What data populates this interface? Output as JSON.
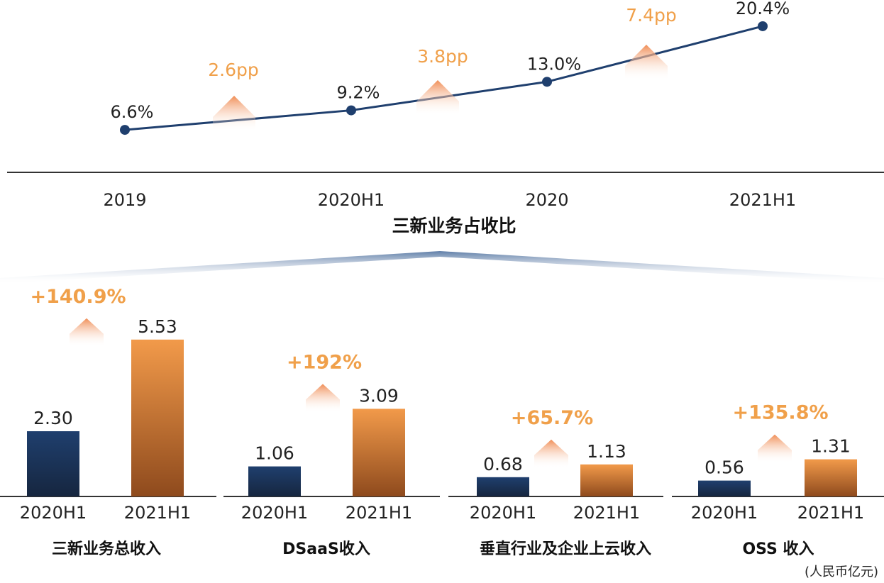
{
  "colors": {
    "navy": "#1f3f6e",
    "orange": "#e98a3c",
    "orange_text": "#f0a04a",
    "arrow": "#f0925a",
    "axis": "#333333",
    "text": "#222222"
  },
  "chart_data": [
    {
      "type": "line",
      "title": "三新业务占收比",
      "categories": [
        "2019",
        "2020H1",
        "2020",
        "2021H1"
      ],
      "values": [
        6.6,
        9.2,
        13.0,
        20.4
      ],
      "value_labels": [
        "6.6%",
        "9.2%",
        "13.0%",
        "20.4%"
      ],
      "ylim": [
        0,
        22
      ],
      "increments": [
        "2.6pp",
        "3.8pp",
        "7.4pp"
      ]
    },
    {
      "type": "bar",
      "title": "三新业务总收入",
      "categories": [
        "2020H1",
        "2021H1"
      ],
      "values": [
        2.3,
        5.53
      ],
      "value_labels": [
        "2.30",
        "5.53"
      ],
      "growth": "+140.9%",
      "ylim": [
        0,
        6.0
      ]
    },
    {
      "type": "bar",
      "title": "DSaaS收入",
      "categories": [
        "2020H1",
        "2021H1"
      ],
      "values": [
        1.06,
        3.09
      ],
      "value_labels": [
        "1.06",
        "3.09"
      ],
      "growth": "+192%",
      "ylim": [
        0,
        6.0
      ]
    },
    {
      "type": "bar",
      "title": "垂直行业及企业上云收入",
      "categories": [
        "2020H1",
        "2021H1"
      ],
      "values": [
        0.68,
        1.13
      ],
      "value_labels": [
        "0.68",
        "1.13"
      ],
      "growth": "+65.7%",
      "ylim": [
        0,
        6.0
      ]
    },
    {
      "type": "bar",
      "title": "OSS 收入",
      "categories": [
        "2020H1",
        "2021H1"
      ],
      "values": [
        0.56,
        1.31
      ],
      "value_labels": [
        "0.56",
        "1.31"
      ],
      "growth": "+135.8%",
      "ylim": [
        0,
        6.0
      ]
    }
  ],
  "unit_note": "(人民币亿元)"
}
